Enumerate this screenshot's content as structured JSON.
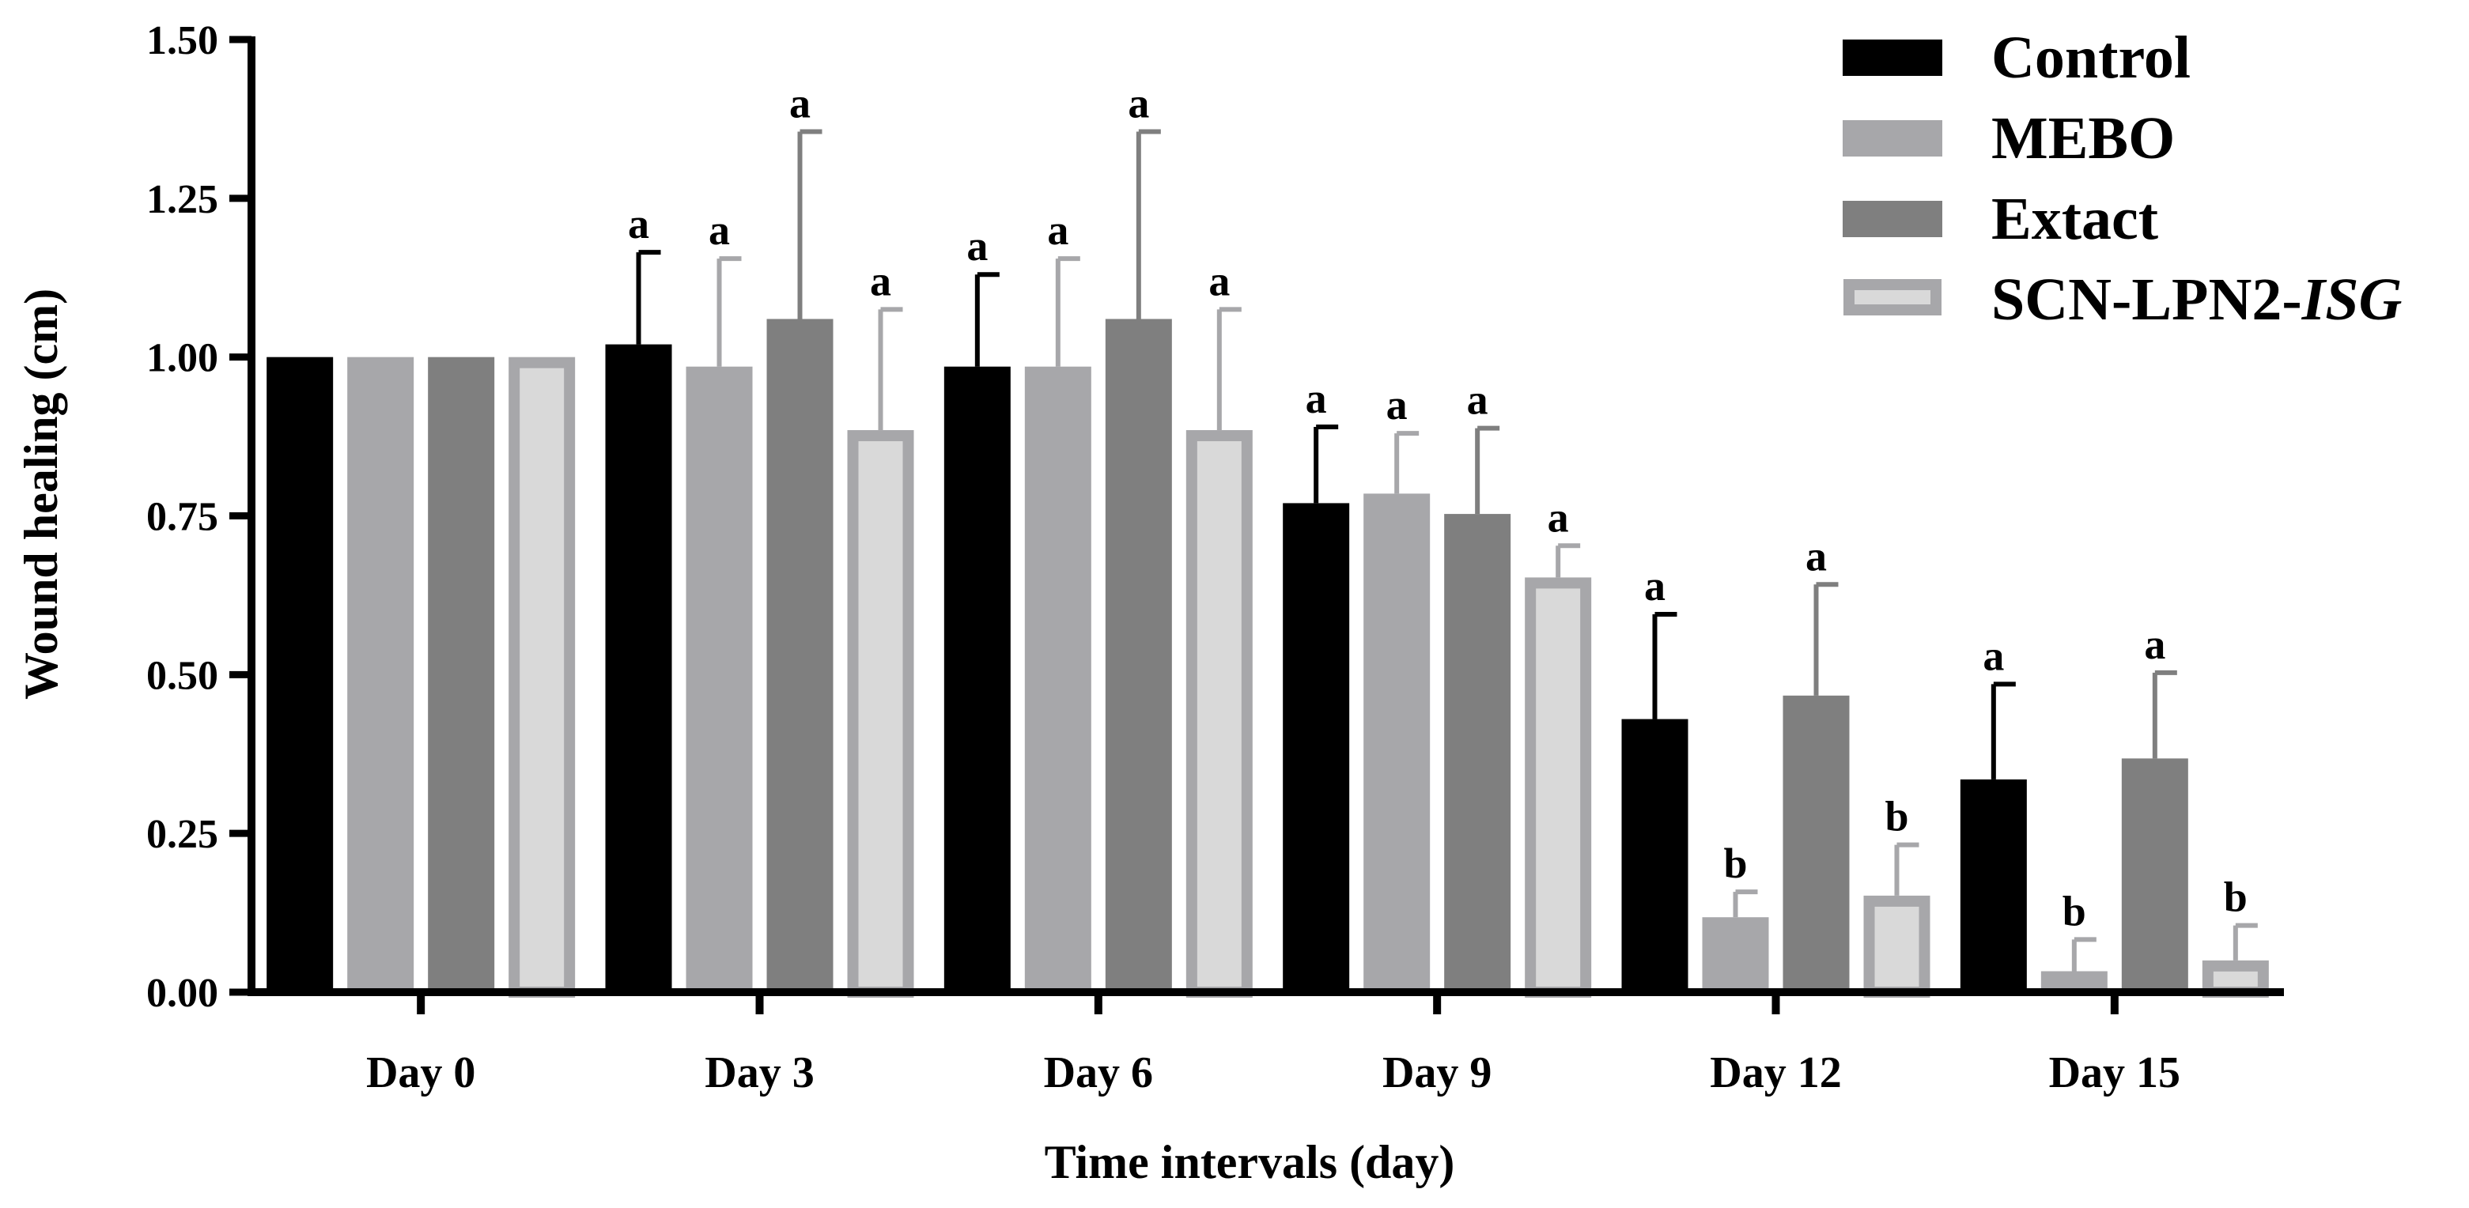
{
  "chart_data": {
    "type": "bar",
    "title": "",
    "xlabel": "Time intervals (day)",
    "ylabel": "Wound healing (cm)",
    "ylim": [
      0,
      1.5
    ],
    "yticks": [
      "0.00",
      "0.25",
      "0.50",
      "0.75",
      "1.00",
      "1.25",
      "1.50"
    ],
    "categories": [
      "Day 0",
      "Day 3",
      "Day 6",
      "Day 9",
      "Day 12",
      "Day 15"
    ],
    "series": [
      {
        "name": "Control",
        "color": "#000000",
        "values": [
          1.0,
          1.02,
          0.985,
          0.77,
          0.43,
          0.335
        ],
        "errors": [
          0,
          0.145,
          0.145,
          0.12,
          0.165,
          0.15
        ],
        "labels": [
          "",
          "a",
          "a",
          "a",
          "a",
          "a"
        ]
      },
      {
        "name": "MEBO",
        "color": "#a7a7aa",
        "values": [
          1.0,
          0.985,
          0.985,
          0.785,
          0.118,
          0.033
        ],
        "errors": [
          0,
          0.17,
          0.17,
          0.095,
          0.04,
          0.05
        ],
        "labels": [
          "",
          "a",
          "a",
          "a",
          "b",
          "b"
        ]
      },
      {
        "name": "Extact",
        "color": "#7f7f7f",
        "values": [
          1.0,
          1.06,
          1.06,
          0.753,
          0.467,
          0.368
        ],
        "errors": [
          0,
          0.295,
          0.295,
          0.135,
          0.175,
          0.135
        ],
        "labels": [
          "",
          "a",
          "a",
          "a",
          "a",
          "a"
        ]
      },
      {
        "name": "SCN-LPN2-ISG",
        "name_main": "SCN-LPN2-",
        "name_italic": "ISG",
        "color": "#d9d9d9",
        "border": "#a7a7aa",
        "values": [
          1.0,
          0.885,
          0.885,
          0.653,
          0.152,
          0.05
        ],
        "errors": [
          0,
          0.19,
          0.19,
          0.05,
          0.08,
          0.055
        ],
        "labels": [
          "",
          "a",
          "a",
          "a",
          "b",
          "b"
        ]
      }
    ],
    "legend": "top-right"
  }
}
